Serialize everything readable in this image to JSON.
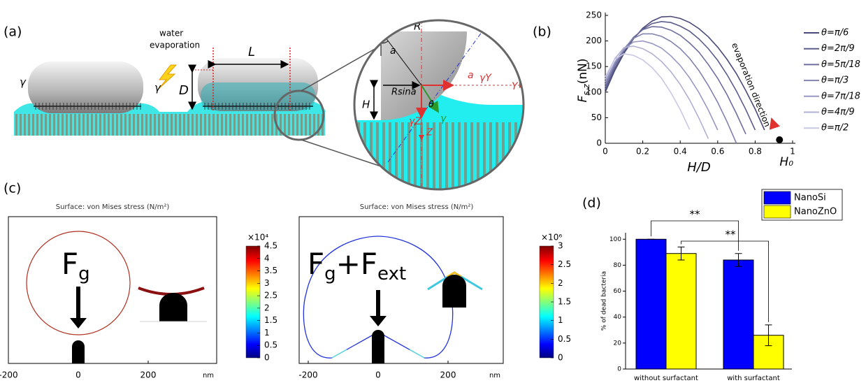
{
  "panel_labels": [
    "(a)",
    "(b)",
    "(c)",
    "(d)"
  ],
  "panel_a": {
    "labels": [
      "water",
      "evaporation",
      "L",
      "D",
      "γ",
      "γ",
      "R",
      "a",
      "Rsina",
      "a",
      "γY",
      "Y",
      "H",
      "θ",
      "γ",
      "γZ",
      "Z"
    ]
  },
  "panel_c": {
    "plots": [
      {
        "title": "Surface: von Mises stress (N/m²)",
        "force_parts": [
          "F",
          "g"
        ],
        "xticks": [
          -200,
          0,
          200
        ],
        "x_unit": "nm",
        "colorbar": {
          "multiplier": "×10⁴",
          "clim": [
            0,
            4.5
          ],
          "ticks": [
            0,
            0.5,
            1,
            1.5,
            2,
            2.5,
            3,
            3.5,
            4,
            4.5
          ]
        }
      },
      {
        "title": "Surface: von Mises stress (N/m²)",
        "force_parts": [
          "F",
          "g",
          "+F",
          "ext"
        ],
        "xticks": [
          -200,
          0,
          200
        ],
        "x_unit": "nm",
        "colorbar": {
          "multiplier": "×10⁶",
          "clim": [
            0,
            3
          ],
          "ticks": [
            0,
            0.5,
            1,
            1.5,
            2,
            2.5,
            3
          ]
        }
      }
    ]
  },
  "chart_data": [
    {
      "type": "line",
      "x_label": "H/D",
      "y_label_parts": [
        "F",
        "s,z",
        "(nN)"
      ],
      "xlim": [
        0,
        1
      ],
      "ylim": [
        0,
        250
      ],
      "xticks": [
        0,
        0.2,
        0.4,
        0.6,
        0.8,
        1
      ],
      "yticks": [
        0,
        50,
        100,
        150,
        200,
        250
      ],
      "x": [
        0,
        0.05,
        0.1,
        0.15,
        0.2,
        0.25,
        0.3,
        0.35,
        0.4,
        0.45,
        0.5,
        0.55,
        0.6,
        0.65,
        0.7,
        0.75,
        0.8,
        0.85,
        0.9
      ],
      "series": [
        {
          "name": "θ=π/6",
          "color": "#4a4a78",
          "values": [
            100,
            142,
            176,
            204,
            225,
            239,
            247,
            248,
            244,
            236,
            224,
            208,
            188,
            164,
            136,
            103,
            67,
            26,
            null
          ]
        },
        {
          "name": "θ=2π/9",
          "color": "#5c5c8c",
          "values": [
            105,
            146,
            179,
            205,
            223,
            234,
            238,
            236,
            229,
            219,
            204,
            185,
            162,
            134,
            102,
            66,
            26,
            null,
            null
          ]
        },
        {
          "name": "θ=5π/18",
          "color": "#6e6e9e",
          "values": [
            110,
            151,
            183,
            207,
            222,
            228,
            227,
            221,
            211,
            196,
            178,
            154,
            127,
            95,
            58,
            18,
            null,
            null,
            null
          ]
        },
        {
          "name": "θ=π/3",
          "color": "#8282b0",
          "values": [
            115,
            155,
            185,
            205,
            214,
            214,
            209,
            199,
            185,
            166,
            142,
            113,
            80,
            42,
            0,
            null,
            null,
            null,
            null
          ]
        },
        {
          "name": "θ=7π/18",
          "color": "#9898c2",
          "values": [
            120,
            158,
            184,
            198,
            200,
            195,
            186,
            171,
            152,
            128,
            99,
            65,
            26,
            null,
            null,
            null,
            null,
            null,
            null
          ]
        },
        {
          "name": "θ=4π/9",
          "color": "#b0b0d4",
          "values": [
            125,
            165,
            187,
            190,
            185,
            175,
            160,
            140,
            115,
            85,
            49,
            9,
            null,
            null,
            null,
            null,
            null,
            null,
            null
          ]
        },
        {
          "name": "θ=π/2",
          "color": "#c8c8e6",
          "values": [
            130,
            164,
            175,
            172,
            163,
            148,
            127,
            99,
            66,
            27,
            null,
            null,
            null,
            null,
            null,
            null,
            null,
            null,
            null
          ]
        }
      ],
      "annotation": "evaporation direction",
      "marker": {
        "label": "H₀",
        "x": 0.93,
        "y": 0
      }
    },
    {
      "type": "bar",
      "y_label": "% of dead bacteria",
      "categories": [
        "without surfactant",
        "with surfactant"
      ],
      "ylim": [
        0,
        105
      ],
      "yticks": [
        0,
        20,
        40,
        60,
        80,
        100
      ],
      "series": [
        {
          "name": "NanoSi",
          "color": "#0000ff",
          "values": [
            100,
            84
          ],
          "errors": [
            0,
            5
          ]
        },
        {
          "name": "NanoZnO",
          "color": "#ffff00",
          "values": [
            89,
            26
          ],
          "errors": [
            5,
            8
          ]
        }
      ],
      "significance": [
        "**",
        "**"
      ]
    }
  ]
}
